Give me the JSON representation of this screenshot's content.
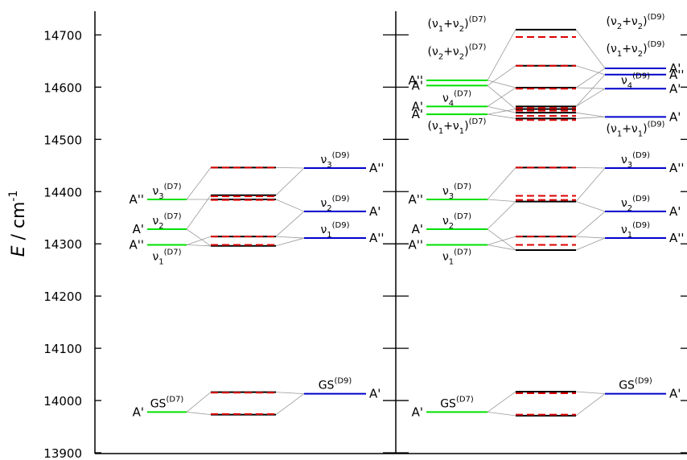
{
  "colors": {
    "d7": "#00e000",
    "d9": "#0000cc",
    "coupled_solid": "#000000",
    "coupled_dashed": "#dd0000",
    "connector": "#999999",
    "axis": "#000000"
  },
  "yaxis": {
    "label_italic": "E",
    "label_rest": " / cm",
    "label_sup": "-1",
    "min": 13900,
    "max": 14750,
    "ticks": [
      13900,
      14000,
      14100,
      14200,
      14300,
      14400,
      14500,
      14600,
      14700
    ]
  },
  "panels": [
    {
      "id": "left",
      "d7": [
        {
          "base": "GS",
          "sup": "(D7)",
          "sym": "A'",
          "e": 13978
        },
        {
          "base": "ν",
          "sub": "1",
          "sup": "(D7)",
          "sym": "A''",
          "e": 14298,
          "label_below": true
        },
        {
          "base": "ν",
          "sub": "2",
          "sup": "(D7)",
          "sym": "A'",
          "e": 14328
        },
        {
          "base": "ν",
          "sub": "3",
          "sup": "(D7)",
          "sym": "A''",
          "e": 14385
        }
      ],
      "d9": [
        {
          "base": "GS",
          "sup": "(D9)",
          "sym": "A'",
          "e": 14013
        },
        {
          "base": "ν",
          "sub": "1",
          "sup": "(D9)",
          "sym": "A''",
          "e": 14311
        },
        {
          "base": "ν",
          "sub": "2",
          "sup": "(D9)",
          "sym": "A'",
          "e": 14362
        },
        {
          "base": "ν",
          "sub": "3",
          "sup": "(D9)",
          "sym": "A''",
          "e": 14445
        }
      ],
      "solid": [
        13973,
        14016,
        14296,
        14314,
        14385,
        14393,
        14446
      ],
      "dashed": [
        13974,
        14015,
        14298,
        14314,
        14384,
        14391,
        14446
      ],
      "links": [
        [
          13978,
          13973
        ],
        [
          13978,
          14016
        ],
        [
          14013,
          13973
        ],
        [
          14013,
          14016
        ],
        [
          14298,
          14296
        ],
        [
          14298,
          14314
        ],
        [
          14311,
          14296
        ],
        [
          14311,
          14314
        ],
        [
          14328,
          14393
        ],
        [
          14328,
          14296
        ],
        [
          14362,
          14385
        ],
        [
          14362,
          14314
        ],
        [
          14385,
          14446
        ],
        [
          14385,
          14385
        ],
        [
          14445,
          14446
        ],
        [
          14445,
          14393
        ]
      ]
    },
    {
      "id": "right",
      "d7": [
        {
          "base": "GS",
          "sup": "(D7)",
          "sym": "A'",
          "e": 13978
        },
        {
          "base": "ν",
          "sub": "1",
          "sup": "(D7)",
          "sym": "A''",
          "e": 14298,
          "label_below": true
        },
        {
          "base": "ν",
          "sub": "2",
          "sup": "(D7)",
          "sym": "A'",
          "e": 14328
        },
        {
          "base": "ν",
          "sub": "3",
          "sup": "(D7)",
          "sym": "A''",
          "e": 14385
        },
        {
          "base": "(ν",
          "sub": "1",
          "mid": "+ν",
          "sub2": "1",
          "end": ")",
          "sup": "(D7)",
          "sym": "A'",
          "e": 14548,
          "label_below": true
        },
        {
          "base": "ν",
          "sub": "4",
          "sup": "(D7)",
          "sym": "A'",
          "e": 14563
        },
        {
          "base": "(ν",
          "sub": "2",
          "mid": "+ν",
          "sub2": "2",
          "end": ")",
          "sup": "(D7)",
          "sym": "A'",
          "e": 14603,
          "label_offset": 32
        },
        {
          "base": "(ν",
          "sub": "1",
          "mid": "+ν",
          "sub2": "2",
          "end": ")",
          "sup": "(D7)",
          "sym": "A''",
          "e": 14613,
          "label_offset": 60
        }
      ],
      "d9": [
        {
          "base": "GS",
          "sup": "(D9)",
          "sym": "A'",
          "e": 14013
        },
        {
          "base": "ν",
          "sub": "1",
          "sup": "(D9)",
          "sym": "A''",
          "e": 14311
        },
        {
          "base": "ν",
          "sub": "2",
          "sup": "(D9)",
          "sym": "A'",
          "e": 14362
        },
        {
          "base": "ν",
          "sub": "3",
          "sup": "(D9)",
          "sym": "A''",
          "e": 14445
        },
        {
          "base": "(ν",
          "sub": "1",
          "mid": "+ν",
          "sub2": "1",
          "end": ")",
          "sup": "(D9)",
          "sym": "A'",
          "e": 14543,
          "label_below": true
        },
        {
          "base": "ν",
          "sub": "4",
          "sup": "(D9)",
          "sym": "A'",
          "e": 14597
        },
        {
          "base": "(ν",
          "sub": "1",
          "mid": "+ν",
          "sub2": "2",
          "end": ")",
          "sup": "(D9)",
          "sym": "A''",
          "e": 14624,
          "label_offset": 22
        },
        {
          "base": "(ν",
          "sub": "2",
          "mid": "+ν",
          "sub2": "2",
          "end": ")",
          "sup": "(D9)",
          "sym": "A'",
          "e": 14636,
          "label_offset": 48
        }
      ],
      "solid": [
        13971,
        14017,
        14288,
        14314,
        14381,
        14446,
        14540,
        14551,
        14558,
        14563,
        14599,
        14641,
        14710
      ],
      "dashed": [
        13973,
        14014,
        14298,
        14314,
        14384,
        14392,
        14446,
        14537,
        14545,
        14555,
        14560,
        14597,
        14641,
        14696
      ],
      "links": [
        [
          13978,
          13971
        ],
        [
          13978,
          14017
        ],
        [
          14013,
          13971
        ],
        [
          14013,
          14017
        ],
        [
          14298,
          14288
        ],
        [
          14298,
          14314
        ],
        [
          14311,
          14288
        ],
        [
          14311,
          14314
        ],
        [
          14328,
          14381
        ],
        [
          14328,
          14288
        ],
        [
          14362,
          14381
        ],
        [
          14362,
          14314
        ],
        [
          14385,
          14446
        ],
        [
          14385,
          14381
        ],
        [
          14445,
          14446
        ],
        [
          14445,
          14381
        ],
        [
          14548,
          14540
        ],
        [
          14548,
          14558
        ],
        [
          14543,
          14540
        ],
        [
          14543,
          14551
        ],
        [
          14563,
          14551
        ],
        [
          14563,
          14599
        ],
        [
          14597,
          14563
        ],
        [
          14597,
          14599
        ],
        [
          14603,
          14641
        ],
        [
          14603,
          14558
        ],
        [
          14613,
          14710
        ],
        [
          14613,
          14599
        ],
        [
          14624,
          14641
        ],
        [
          14624,
          14563
        ],
        [
          14636,
          14710
        ],
        [
          14636,
          14599
        ]
      ]
    }
  ]
}
